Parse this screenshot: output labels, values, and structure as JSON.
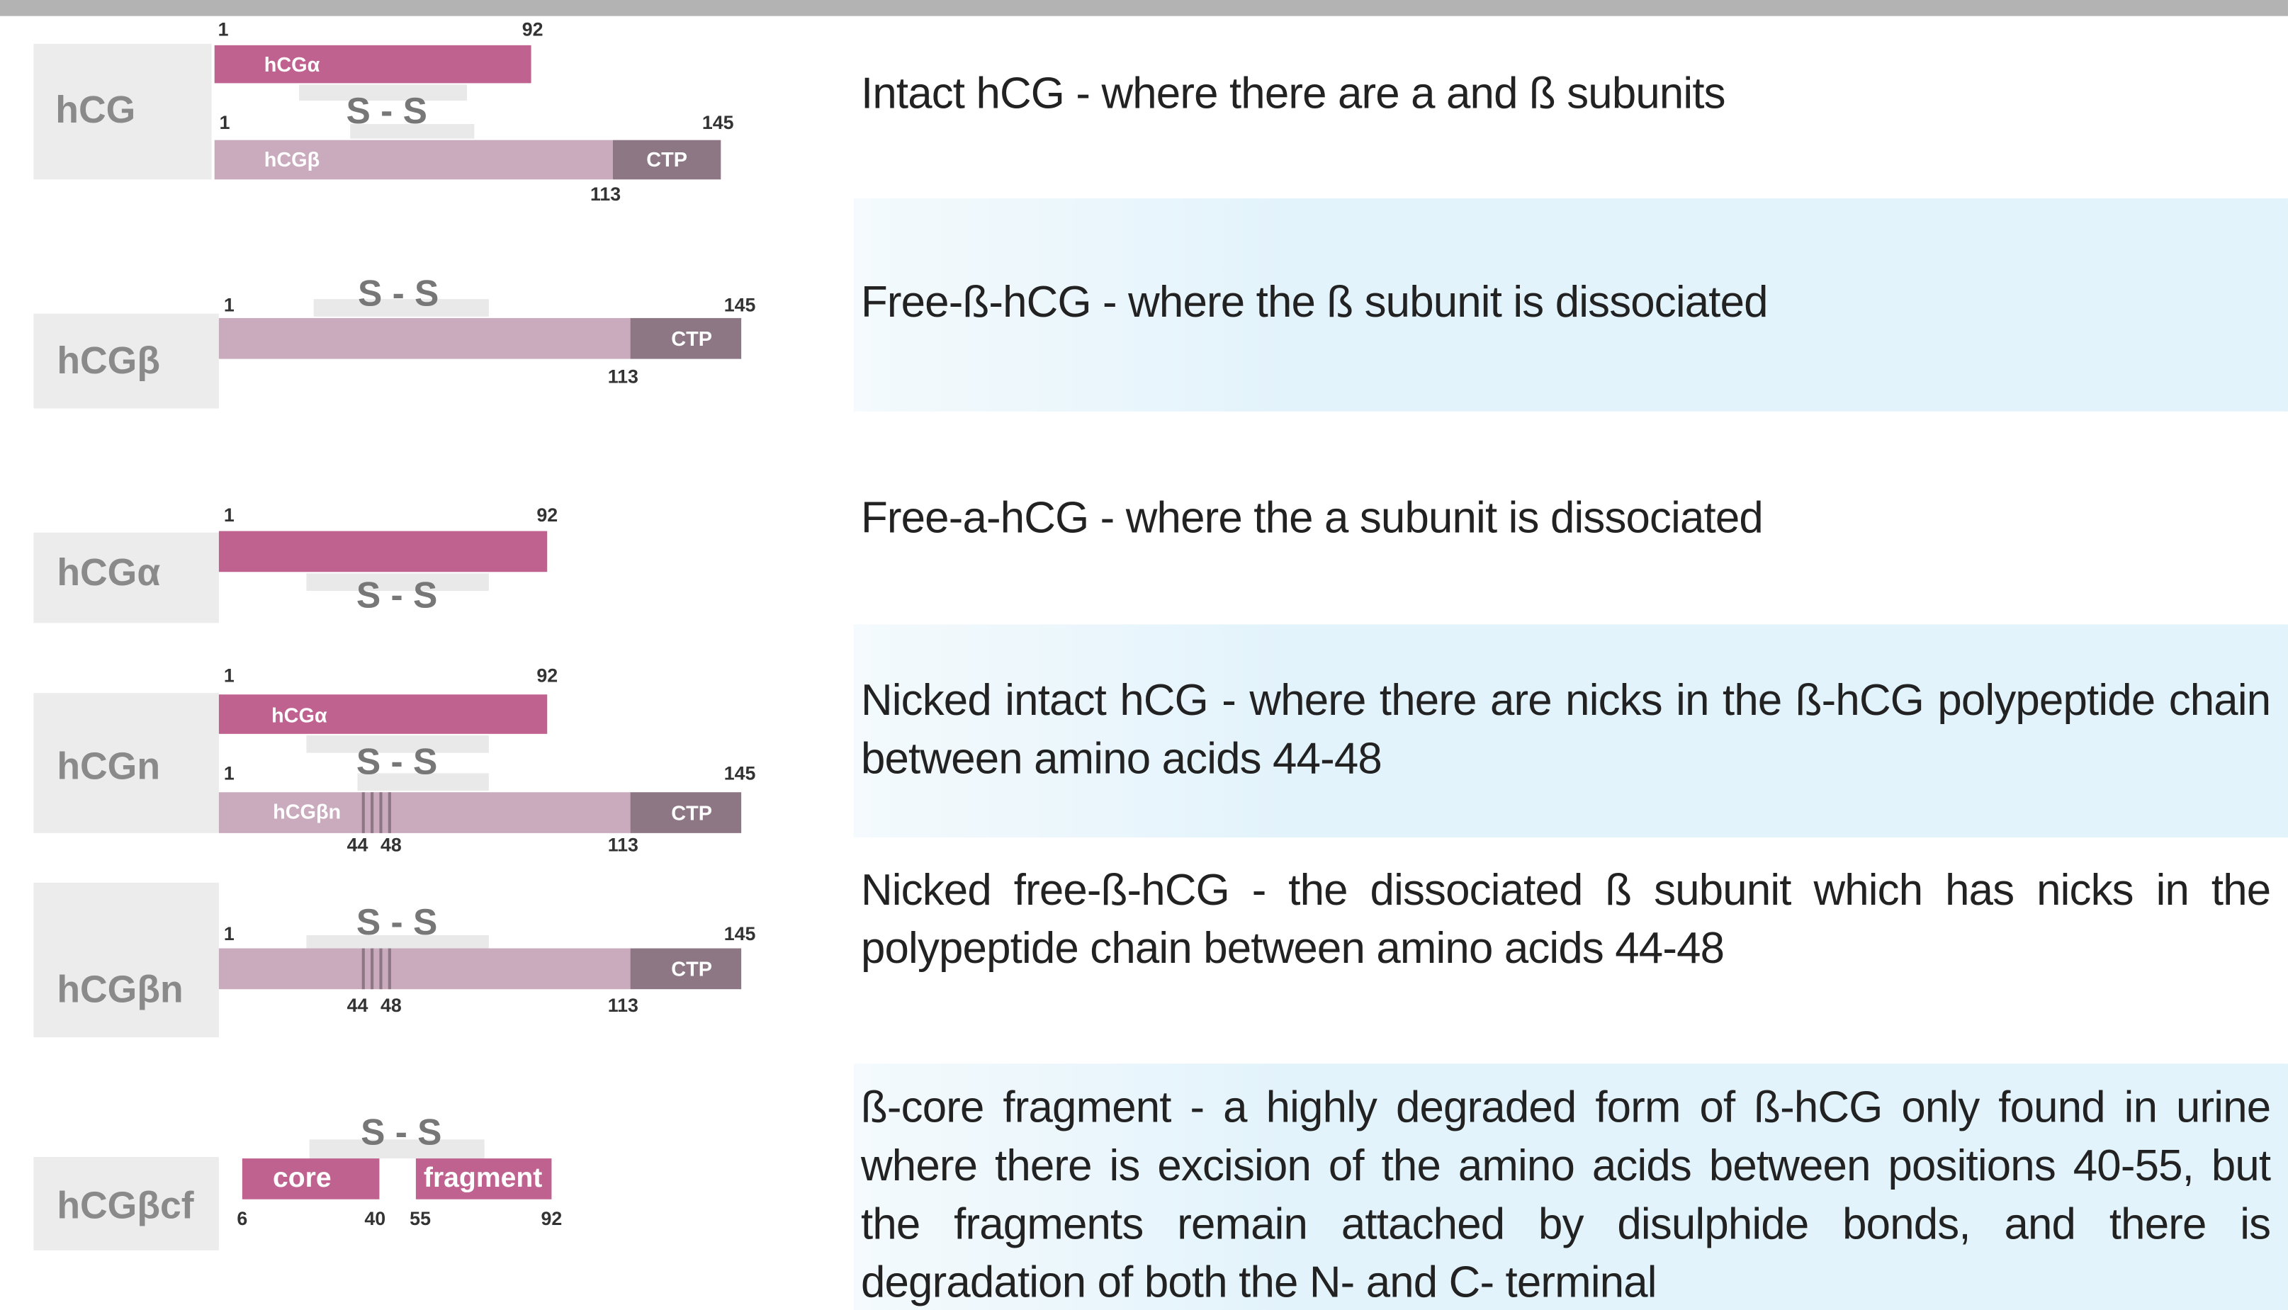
{
  "rows": [
    {
      "label": "hCG",
      "alpha": {
        "label": "hCGα",
        "start": "1",
        "end": "92"
      },
      "bridge": "S - S",
      "beta": {
        "label": "hCGβ",
        "start": "1",
        "end": "145",
        "ctp": "CTP",
        "ctp_start": "113"
      },
      "description": "Intact hCG - where there are a and ß subunits"
    },
    {
      "label": "hCGβ",
      "bridge": "S - S",
      "beta": {
        "start": "1",
        "end": "145",
        "ctp": "CTP",
        "ctp_start": "113"
      },
      "description": "Free-ß-hCG - where the ß subunit is dissociated"
    },
    {
      "label": "hCGα",
      "alpha": {
        "start": "1",
        "end": "92"
      },
      "bridge": "S - S",
      "description": "Free-a-hCG - where the a subunit is dissociated"
    },
    {
      "label": "hCGn",
      "alpha": {
        "label": "hCGα",
        "start": "1",
        "end": "92"
      },
      "bridge": "S - S",
      "beta": {
        "label": "hCGβn",
        "start": "1",
        "end": "145",
        "nick_start": "44",
        "nick_end": "48",
        "ctp": "CTP",
        "ctp_start": "113"
      },
      "description": "Nicked intact hCG - where there are nicks in the ß-hCG polypeptide chain between amino acids 44-48"
    },
    {
      "label": "hCGβn",
      "bridge": "S - S",
      "beta": {
        "start": "1",
        "end": "145",
        "nick_start": "44",
        "nick_end": "48",
        "ctp": "CTP",
        "ctp_start": "113"
      },
      "description": "Nicked free-ß-hCG - the dissociated ß subunit which has nicks in the polypeptide chain between amino acids 44-48"
    },
    {
      "label": "hCGβcf",
      "bridge": "S - S",
      "core": {
        "label": "core",
        "start": "6",
        "end": "40"
      },
      "fragment": {
        "label": "fragment",
        "start": "55",
        "end": "92"
      },
      "description": "ß-core fragment - a highly degraded form of ß-hCG only found in urine where there is excision of the amino acids between positions 40-55, but the fragments remain attached by disulphide bonds, and there is degradation of both the N- and C- terminal"
    }
  ]
}
